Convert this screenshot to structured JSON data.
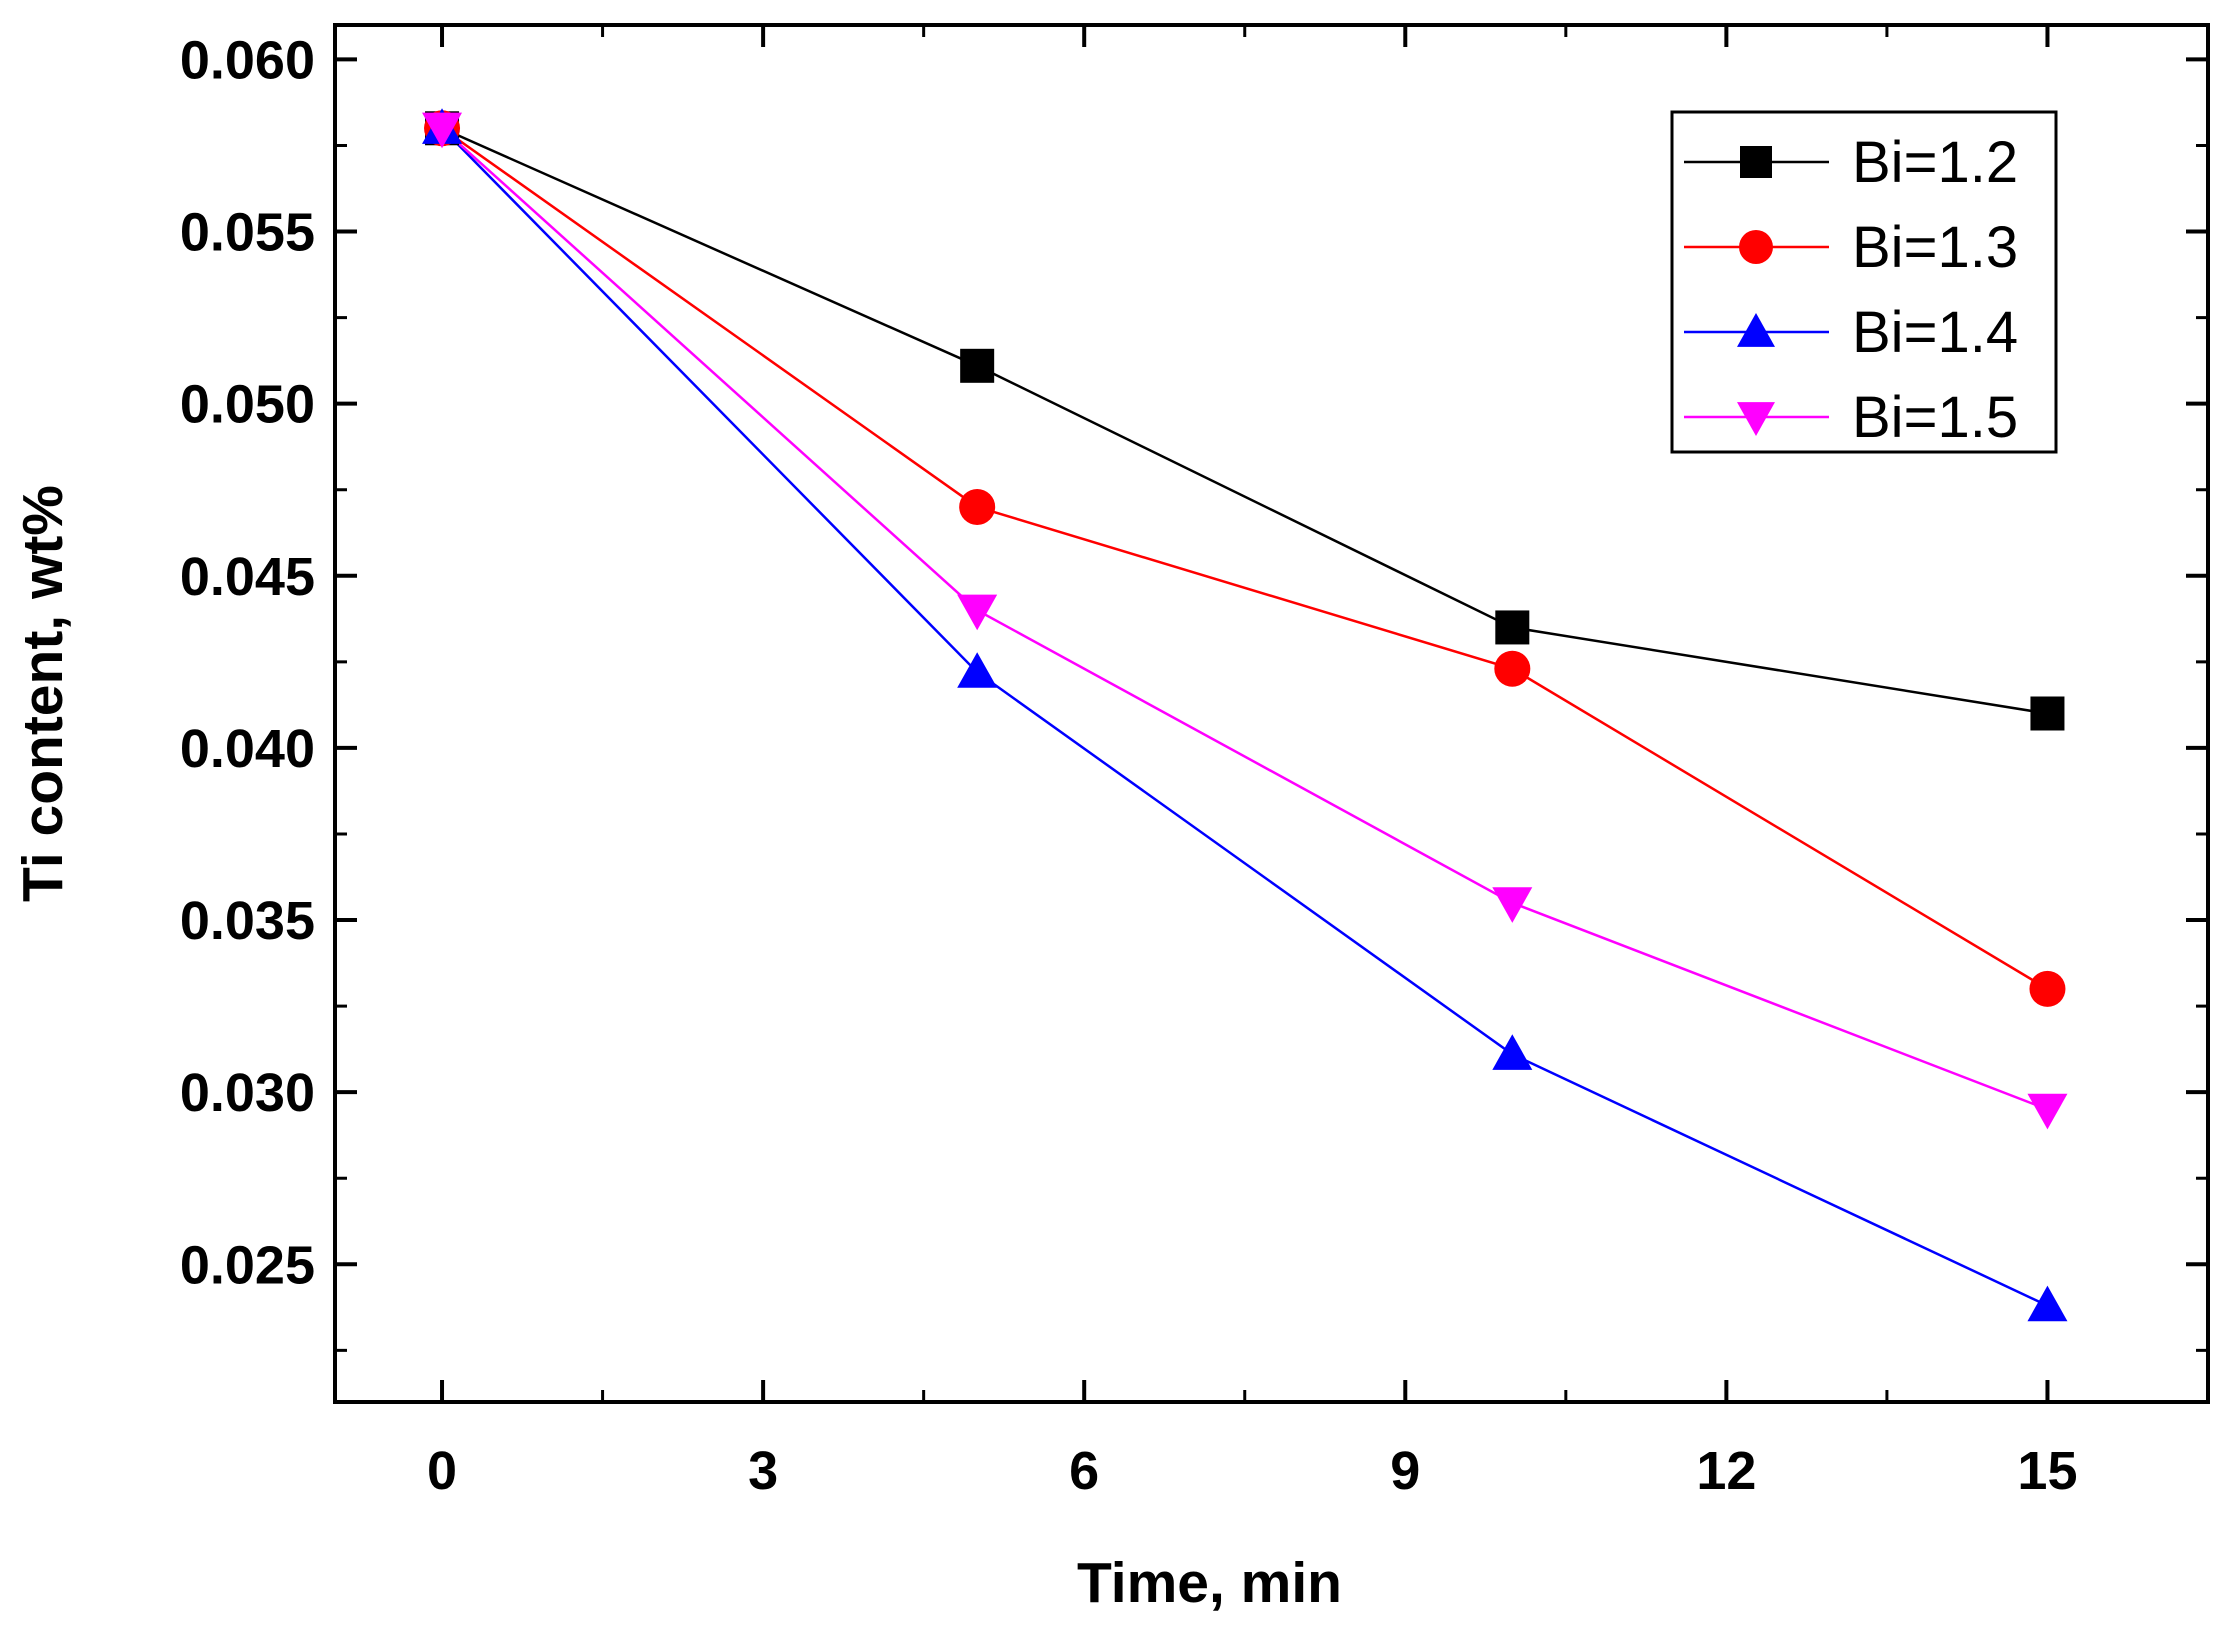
{
  "chart_data": {
    "type": "line",
    "title": "",
    "xlabel": "Time, min",
    "ylabel": "Ti content, wt%",
    "xlim": [
      -1,
      16.5
    ],
    "ylim": [
      0.021,
      0.061
    ],
    "x": [
      0,
      5,
      10,
      15
    ],
    "xticks": [
      0,
      3,
      6,
      9,
      12,
      15
    ],
    "xtick_labels": [
      "0",
      "3",
      "6",
      "9",
      "12",
      "15"
    ],
    "yticks": [
      0.025,
      0.03,
      0.035,
      0.04,
      0.045,
      0.05,
      0.055,
      0.06
    ],
    "ytick_labels": [
      "0.025",
      "0.030",
      "0.035",
      "0.040",
      "0.045",
      "0.050",
      "0.055",
      "0.060"
    ],
    "grid": false,
    "legend_position": "top-right",
    "series": [
      {
        "name": "Bi=1.2",
        "values": [
          0.058,
          0.0511,
          0.0435,
          0.041
        ],
        "color": "#000000",
        "marker": "square"
      },
      {
        "name": "Bi=1.3",
        "values": [
          0.058,
          0.047,
          0.0423,
          0.033
        ],
        "color": "#ff0000",
        "marker": "circle"
      },
      {
        "name": "Bi=1.4",
        "values": [
          0.058,
          0.0422,
          0.0311,
          0.0238
        ],
        "color": "#0000ff",
        "marker": "triangle-up"
      },
      {
        "name": "Bi=1.5",
        "values": [
          0.058,
          0.044,
          0.0355,
          0.0295
        ],
        "color": "#ff00ff",
        "marker": "triangle-down"
      }
    ]
  }
}
